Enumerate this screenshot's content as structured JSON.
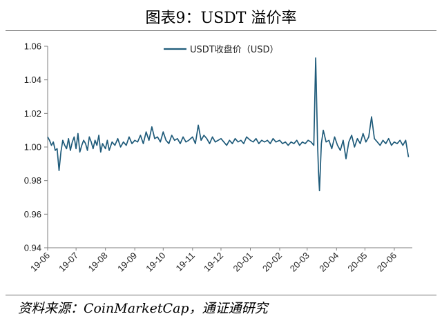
{
  "header": {
    "title": "图表9：USDT 溢价率"
  },
  "footer": {
    "source": "资料来源：CoinMarketCap，通证通研究"
  },
  "colors": {
    "series": "#1f5b7a",
    "axis": "#7f7f7f"
  },
  "chart_data": {
    "type": "line",
    "ylim": [
      0.94,
      1.06
    ],
    "yticks": [
      "0.94",
      "0.96",
      "0.98",
      "1.00",
      "1.02",
      "1.04",
      "1.06"
    ],
    "xticks": [
      "19-06",
      "19-07",
      "19-08",
      "19-09",
      "19-10",
      "19-11",
      "19-12",
      "20-01",
      "20-02",
      "20-03",
      "20-04",
      "20-05",
      "20-06"
    ],
    "grid": false,
    "legend_position": "top-center",
    "series": [
      {
        "name": "USDT收盘价（USD）",
        "x": [
          "2019-06-01",
          "2019-06-03",
          "2019-06-05",
          "2019-06-07",
          "2019-06-09",
          "2019-06-11",
          "2019-06-13",
          "2019-06-15",
          "2019-06-17",
          "2019-06-19",
          "2019-06-21",
          "2019-06-23",
          "2019-06-25",
          "2019-06-27",
          "2019-06-29",
          "2019-07-01",
          "2019-07-03",
          "2019-07-05",
          "2019-07-07",
          "2019-07-09",
          "2019-07-11",
          "2019-07-13",
          "2019-07-15",
          "2019-07-17",
          "2019-07-19",
          "2019-07-21",
          "2019-07-23",
          "2019-07-25",
          "2019-07-27",
          "2019-07-29",
          "2019-08-01",
          "2019-08-03",
          "2019-08-05",
          "2019-08-08",
          "2019-08-11",
          "2019-08-14",
          "2019-08-17",
          "2019-08-20",
          "2019-08-23",
          "2019-08-26",
          "2019-08-29",
          "2019-09-01",
          "2019-09-04",
          "2019-09-07",
          "2019-09-10",
          "2019-09-13",
          "2019-09-16",
          "2019-09-19",
          "2019-09-22",
          "2019-09-25",
          "2019-09-28",
          "2019-10-01",
          "2019-10-04",
          "2019-10-07",
          "2019-10-10",
          "2019-10-13",
          "2019-10-16",
          "2019-10-19",
          "2019-10-22",
          "2019-10-25",
          "2019-10-28",
          "2019-11-01",
          "2019-11-04",
          "2019-11-07",
          "2019-11-10",
          "2019-11-13",
          "2019-11-16",
          "2019-11-19",
          "2019-11-22",
          "2019-11-25",
          "2019-11-28",
          "2019-12-01",
          "2019-12-04",
          "2019-12-07",
          "2019-12-10",
          "2019-12-13",
          "2019-12-16",
          "2019-12-19",
          "2019-12-22",
          "2019-12-25",
          "2019-12-28",
          "2020-01-01",
          "2020-01-04",
          "2020-01-07",
          "2020-01-10",
          "2020-01-13",
          "2020-01-16",
          "2020-01-19",
          "2020-01-22",
          "2020-01-25",
          "2020-01-28",
          "2020-02-01",
          "2020-02-04",
          "2020-02-07",
          "2020-02-10",
          "2020-02-13",
          "2020-02-16",
          "2020-02-19",
          "2020-02-22",
          "2020-02-25",
          "2020-02-28",
          "2020-03-02",
          "2020-03-05",
          "2020-03-08",
          "2020-03-10",
          "2020-03-12",
          "2020-03-13",
          "2020-03-14",
          "2020-03-16",
          "2020-03-18",
          "2020-03-21",
          "2020-03-24",
          "2020-03-27",
          "2020-03-30",
          "2020-04-02",
          "2020-04-05",
          "2020-04-08",
          "2020-04-11",
          "2020-04-14",
          "2020-04-17",
          "2020-04-20",
          "2020-04-23",
          "2020-04-26",
          "2020-04-29",
          "2020-05-02",
          "2020-05-05",
          "2020-05-08",
          "2020-05-11",
          "2020-05-14",
          "2020-05-17",
          "2020-05-20",
          "2020-05-23",
          "2020-05-26",
          "2020-05-29",
          "2020-06-01",
          "2020-06-04",
          "2020-06-07",
          "2020-06-10",
          "2020-06-13",
          "2020-06-16"
        ],
        "values": [
          1.006,
          1.004,
          1.001,
          1.003,
          0.998,
          0.999,
          0.986,
          0.997,
          1.004,
          1.001,
          0.999,
          1.005,
          0.998,
          1.003,
          1.006,
          0.999,
          1.008,
          0.997,
          1.001,
          1.004,
          1.002,
          0.998,
          1.006,
          1.003,
          0.999,
          1.004,
          1.001,
          1.007,
          0.997,
          1.002,
          0.999,
          1.004,
          0.998,
          1.003,
          1.001,
          1.005,
          1.0,
          1.003,
          1.001,
          1.006,
          1.002,
          1.004,
          1.003,
          1.007,
          1.002,
          1.009,
          1.004,
          1.012,
          1.005,
          1.006,
          1.003,
          1.009,
          1.004,
          1.002,
          1.007,
          1.004,
          1.005,
          1.002,
          1.006,
          1.003,
          1.004,
          1.006,
          1.002,
          1.013,
          1.004,
          1.007,
          1.005,
          1.002,
          1.006,
          1.003,
          1.004,
          1.005,
          1.003,
          1.001,
          1.004,
          1.002,
          1.005,
          1.003,
          1.004,
          1.002,
          1.006,
          1.004,
          1.003,
          1.005,
          1.002,
          1.004,
          1.003,
          1.004,
          1.002,
          1.005,
          1.003,
          1.004,
          1.002,
          1.003,
          1.001,
          1.003,
          1.002,
          1.004,
          1.001,
          1.003,
          1.002,
          1.004,
          1.003,
          1.001,
          1.053,
          1.001,
          0.985,
          0.974,
          1.002,
          1.01,
          1.003,
          1.004,
          0.999,
          1.006,
          1.001,
          0.998,
          1.004,
          0.993,
          1.003,
          1.007,
          1.0,
          1.005,
          1.002,
          1.008,
          1.003,
          1.006,
          1.018,
          1.005,
          1.003,
          1.001,
          1.004,
          1.002,
          1.005,
          1.001,
          1.003,
          1.002,
          1.004,
          1.001,
          1.004,
          0.994
        ]
      }
    ]
  }
}
